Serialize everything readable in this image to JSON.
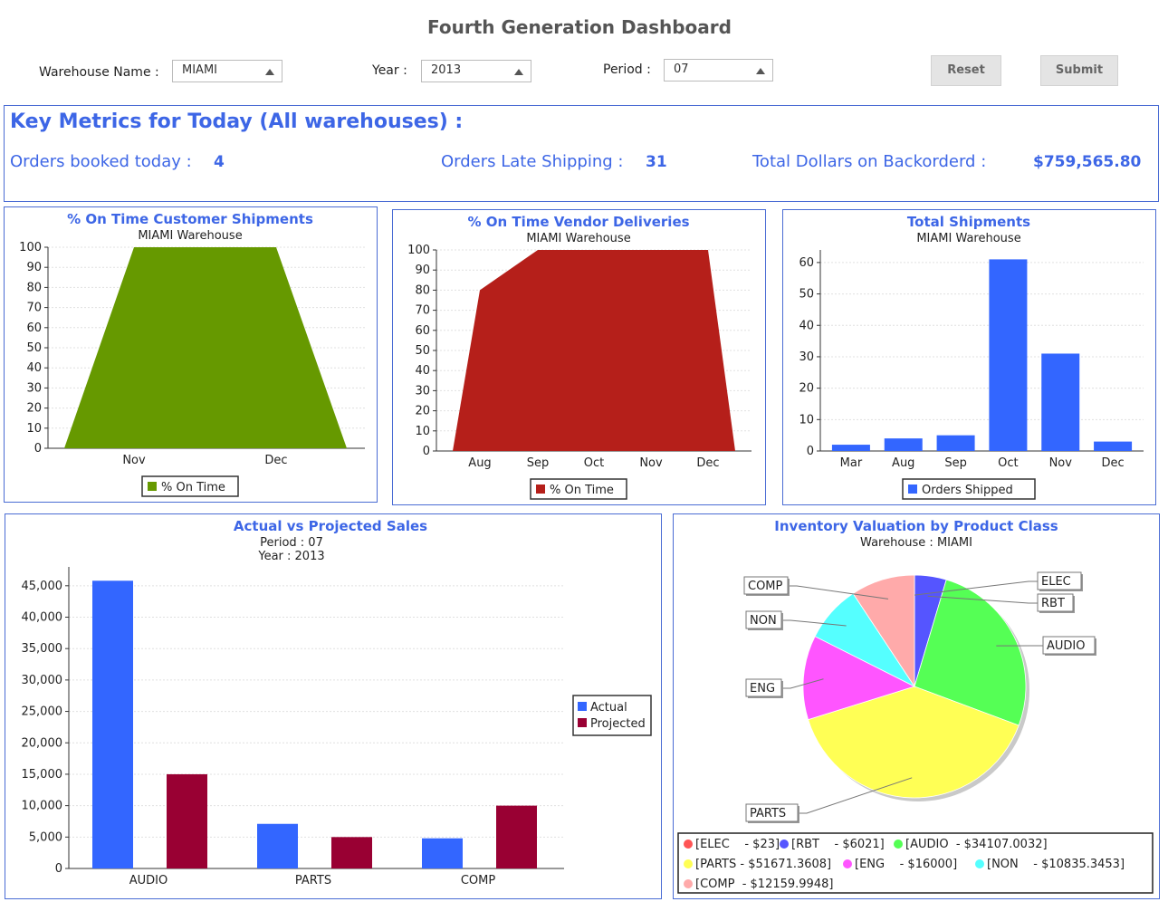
{
  "page": {
    "title": "Fourth Generation Dashboard"
  },
  "filters": {
    "warehouse_label": "Warehouse Name :",
    "warehouse_value": "MIAMI",
    "year_label": "Year :",
    "year_value": "2013",
    "period_label": "Period :",
    "period_value": "07",
    "reset_label": "Reset",
    "submit_label": "Submit"
  },
  "metrics": {
    "title": "Key Metrics for Today (All warehouses) :",
    "orders_booked_label": "Orders booked today :",
    "orders_booked_value": "4",
    "late_label": "Orders Late Shipping :",
    "late_value": "31",
    "backorder_label": "Total Dollars on Backorderd :",
    "backorder_value": "$759,565.80"
  },
  "colors": {
    "accent": "#3d66e6",
    "green": "#669900",
    "red": "#b51f1a",
    "blue": "#3366ff",
    "maroon": "#990033"
  },
  "chart_data": [
    {
      "type": "area",
      "title": "% On Time Customer Shipments",
      "subtitle": "MIAMI Warehouse",
      "categories": [
        "Nov",
        "Dec"
      ],
      "series": [
        {
          "name": "% On Time",
          "values": [
            100,
            100
          ]
        }
      ],
      "ylim": [
        0,
        100
      ],
      "yticks": [
        0,
        10,
        20,
        30,
        40,
        50,
        60,
        70,
        80,
        90,
        100
      ],
      "legend": "bottom",
      "grid": true
    },
    {
      "type": "area",
      "title": "% On Time Vendor Deliveries",
      "subtitle": "MIAMI Warehouse",
      "categories": [
        "Aug",
        "Sep",
        "Oct",
        "Nov",
        "Dec"
      ],
      "series": [
        {
          "name": "% On Time",
          "values": [
            80,
            100,
            100,
            100,
            100
          ]
        }
      ],
      "ylim": [
        0,
        100
      ],
      "yticks": [
        0,
        10,
        20,
        30,
        40,
        50,
        60,
        70,
        80,
        90,
        100
      ],
      "legend": "bottom",
      "grid": true
    },
    {
      "type": "bar",
      "title": "Total Shipments",
      "subtitle": "MIAMI Warehouse",
      "categories": [
        "Mar",
        "Aug",
        "Sep",
        "Oct",
        "Nov",
        "Dec"
      ],
      "series": [
        {
          "name": "Orders Shipped",
          "values": [
            2,
            4,
            5,
            61,
            31,
            3
          ]
        }
      ],
      "ylim": [
        0,
        64
      ],
      "yticks": [
        0,
        10,
        20,
        30,
        40,
        50,
        60
      ],
      "legend": "bottom",
      "grid": true
    },
    {
      "type": "bar",
      "title": "Actual vs Projected Sales",
      "subtitle_lines": [
        "Period : 07",
        "Year : 2013"
      ],
      "categories": [
        "AUDIO",
        "PARTS",
        "COMP"
      ],
      "series": [
        {
          "name": "Actual",
          "values": [
            45800,
            7100,
            4800
          ]
        },
        {
          "name": "Projected",
          "values": [
            15000,
            5000,
            10000
          ]
        }
      ],
      "ylim": [
        0,
        48000
      ],
      "yticks": [
        "0",
        "5,000",
        "10,000",
        "15,000",
        "20,000",
        "25,000",
        "30,000",
        "35,000",
        "40,000",
        "45,000"
      ],
      "legend": "right",
      "grid": true
    },
    {
      "type": "pie",
      "title": "Inventory Valuation by Product Class",
      "subtitle": "Warehouse : MIAMI",
      "slices": [
        {
          "label": "ELEC",
          "value": 23,
          "color": "#ff5555"
        },
        {
          "label": "RBT",
          "value": 6021,
          "color": "#5555ff"
        },
        {
          "label": "AUDIO",
          "value": 34107.0032,
          "color": "#55ff55"
        },
        {
          "label": "PARTS",
          "value": 51671.3608,
          "color": "#ffff55"
        },
        {
          "label": "ENG",
          "value": 16000,
          "color": "#ff55ff"
        },
        {
          "label": "NON",
          "value": 10835.3453,
          "color": "#55ffff"
        },
        {
          "label": "COMP",
          "value": 12159.9948,
          "color": "#ffaaaa"
        }
      ],
      "legend_entries": [
        "[ELEC    - $23]",
        "[RBT    - $6021]",
        "[AUDIO  - $34107.0032]",
        "[PARTS - $51671.3608]",
        "[ENG    - $16000]",
        "[NON    - $10835.3453]",
        "[COMP  - $12159.9948]"
      ],
      "legend": "bottom"
    }
  ]
}
